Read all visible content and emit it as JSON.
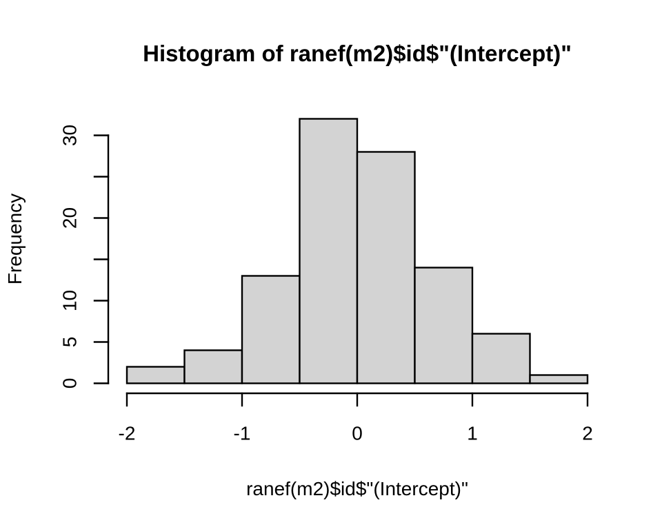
{
  "chart_data": {
    "type": "bar",
    "subtype": "histogram",
    "title": "Histogram of ranef(m2)$id$\"(Intercept)\"",
    "xlabel": "ranef(m2)$id$\"(Intercept)\"",
    "ylabel": "Frequency",
    "bin_edges": [
      -2,
      -1.5,
      -1,
      -0.5,
      0,
      0.5,
      1,
      1.5,
      2
    ],
    "counts": [
      2,
      4,
      13,
      32,
      28,
      14,
      6,
      1
    ],
    "xlim": [
      -2,
      2
    ],
    "ylim": [
      0,
      30
    ],
    "x_ticks": [
      -2,
      -1,
      0,
      1,
      2
    ],
    "x_tick_labels": [
      "-2",
      "-1",
      "0",
      "1",
      "2"
    ],
    "y_ticks": [
      0,
      5,
      10,
      15,
      20,
      25,
      30
    ],
    "y_tick_labels": [
      "0",
      "5",
      "10",
      "",
      "20",
      "",
      "30"
    ],
    "grid": false,
    "legend": null,
    "colors": {
      "bar_fill": "#d3d3d3",
      "bar_stroke": "#000000",
      "axis": "#000000",
      "text": "#000000",
      "background": "#ffffff"
    }
  }
}
